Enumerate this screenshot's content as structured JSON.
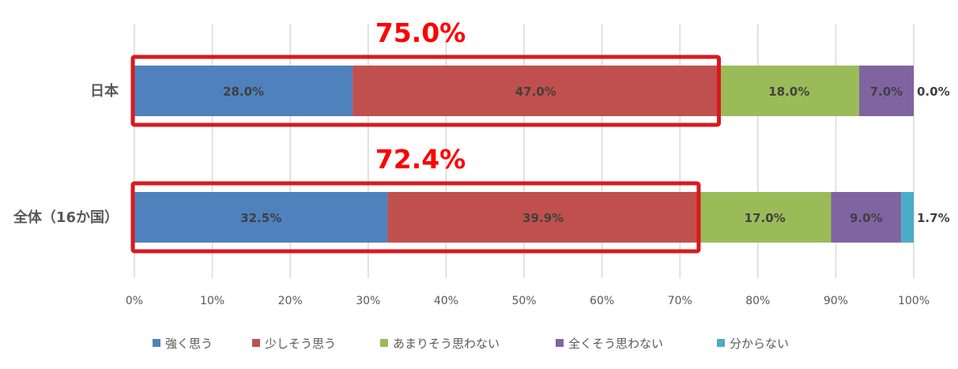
{
  "chart_data": {
    "type": "bar",
    "orientation": "horizontal",
    "stacked": "percent",
    "categories": [
      "日本",
      "全体（16か国）"
    ],
    "series": [
      {
        "name": "強く思う",
        "color": "#4f81bd",
        "values": [
          28.0,
          32.5
        ],
        "labels": [
          "28.0%",
          "32.5%"
        ]
      },
      {
        "name": "少しそう思う",
        "color": "#c0504d",
        "values": [
          47.0,
          39.9
        ],
        "labels": [
          "47.0%",
          "39.9%"
        ]
      },
      {
        "name": "あまりそう思わない",
        "color": "#9bbb59",
        "values": [
          18.0,
          17.0
        ],
        "labels": [
          "18.0%",
          "17.0%"
        ]
      },
      {
        "name": "全くそう思わない",
        "color": "#8064a2",
        "values": [
          7.0,
          9.0
        ],
        "labels": [
          "7.0%",
          "9.0%"
        ]
      },
      {
        "name": "分からない",
        "color": "#4bacc6",
        "values": [
          0.0,
          1.7
        ],
        "labels": [
          "0.0%",
          "1.7%"
        ]
      }
    ],
    "xlim": [
      0,
      100
    ],
    "xticks": [
      "0%",
      "10%",
      "20%",
      "30%",
      "40%",
      "50%",
      "60%",
      "70%",
      "80%",
      "90%",
      "100%"
    ],
    "grid": true,
    "legend_position": "bottom",
    "annotations": [
      {
        "text": "75.0%",
        "category": "日本",
        "highlight_to": 75.0,
        "color": "#ff0000"
      },
      {
        "text": "72.4%",
        "category": "全体（16か国）",
        "highlight_to": 72.4,
        "color": "#ff0000"
      }
    ],
    "highlight_box_color": "#d9191f"
  }
}
